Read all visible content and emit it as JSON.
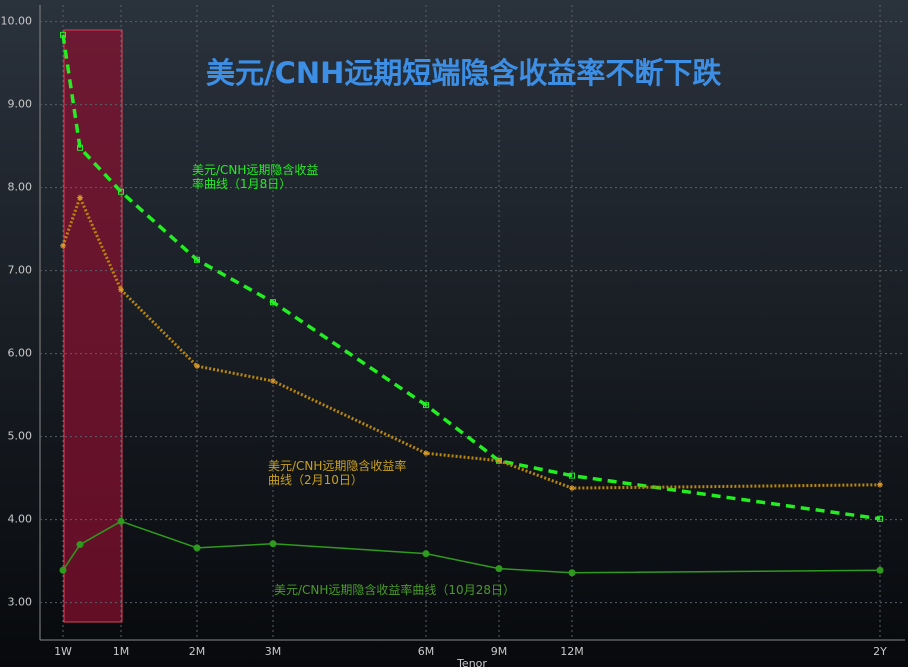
{
  "chart_data": {
    "type": "line",
    "title": "美元/CNH远期短端隐含收益率不断下跌",
    "x_label": "Tenor",
    "categories": [
      "1W",
      null,
      "1M",
      "2M",
      "3M",
      "6M",
      "9M",
      "12M",
      "2Y"
    ],
    "ylim": [
      2.55,
      10.2
    ],
    "yticks": [
      {
        "value": 3,
        "label": "3.00"
      },
      {
        "value": 4,
        "label": "4.00"
      },
      {
        "value": 5,
        "label": "5.00"
      },
      {
        "value": 6,
        "label": "6.00"
      },
      {
        "value": 7,
        "label": "7.00"
      },
      {
        "value": 8,
        "label": "8.00"
      },
      {
        "value": 9,
        "label": "9.00"
      },
      {
        "value": 10,
        "label": "10.00"
      }
    ],
    "grid": true,
    "series": [
      {
        "name": "美元/CNH远期隐含收益率曲线（1月8日）",
        "color": "#22ee22",
        "style": "dashed",
        "marker": "square",
        "values": [
          9.84,
          8.48,
          7.95,
          7.13,
          6.62,
          5.38,
          4.71,
          4.53,
          4.01
        ]
      },
      {
        "name": "美元/CNH远期隐含收益率曲线（2月10日）",
        "color": "#b8860b",
        "style": "dotted",
        "marker": "star",
        "values": [
          7.3,
          7.88,
          6.77,
          5.85,
          5.67,
          4.8,
          4.71,
          4.38,
          4.42
        ]
      },
      {
        "name": "美元/CNH远期隐含收益率曲线（10月28日）",
        "color": "#2e9a1e",
        "style": "solid",
        "marker": "circle",
        "values": [
          3.39,
          3.7,
          3.98,
          3.66,
          3.71,
          3.59,
          3.41,
          3.36,
          3.39
        ]
      }
    ]
  }
}
